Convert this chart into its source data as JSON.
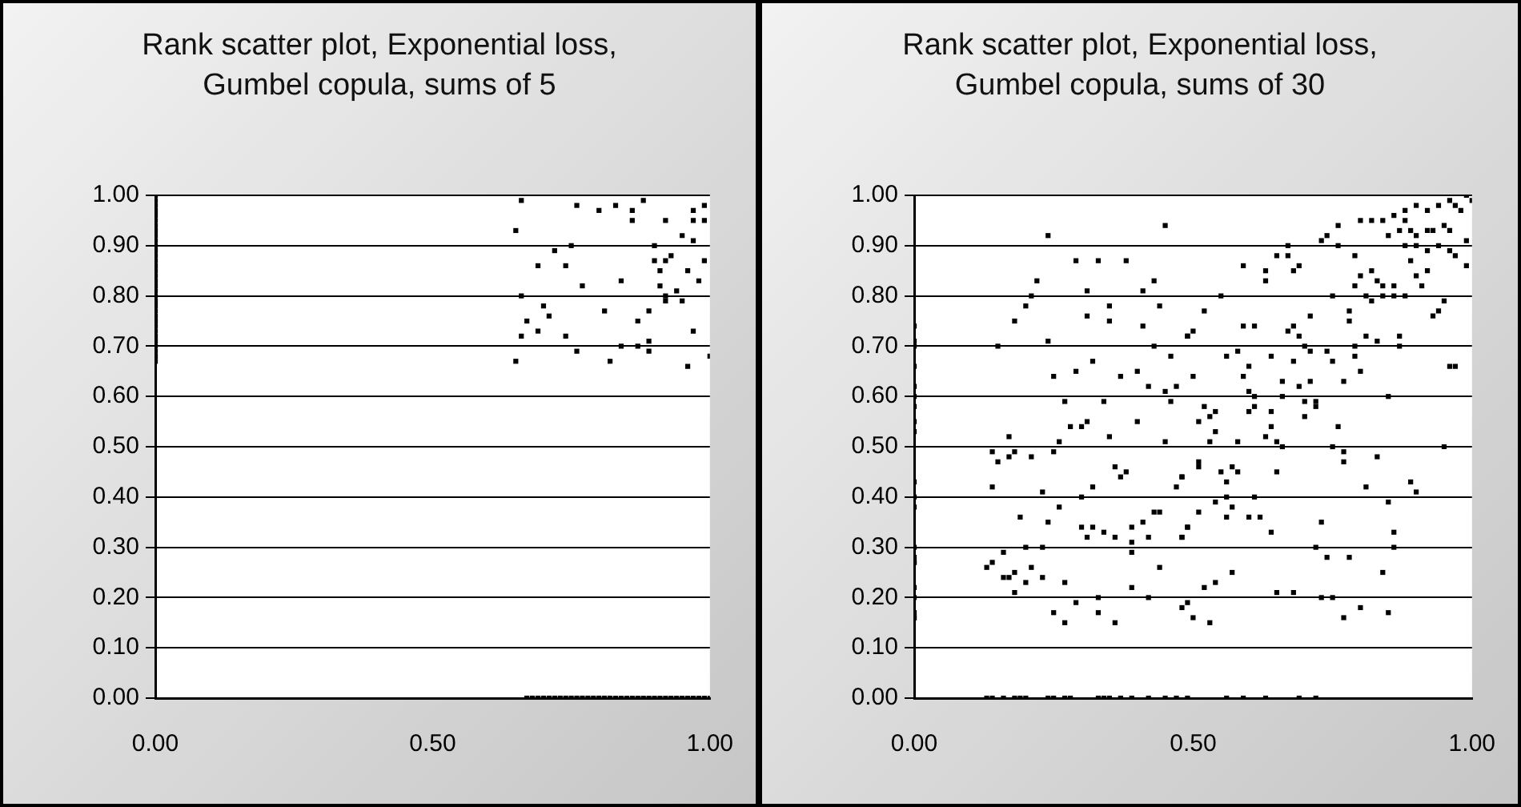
{
  "chart_data": [
    {
      "type": "scatter",
      "title": "Rank scatter plot, Exponential loss, Gumbel copula, sums of 5",
      "color": "#000000",
      "marker": "square",
      "grid": "y",
      "xlim": [
        0,
        1
      ],
      "ylim": [
        0,
        1
      ],
      "xticks": [
        {
          "value": 0,
          "label": "0.00"
        },
        {
          "value": 0.5,
          "label": "0.50"
        },
        {
          "value": 1,
          "label": "1.00"
        }
      ],
      "yticks": [
        {
          "value": 0,
          "label": "0.00"
        },
        {
          "value": 0.1,
          "label": "0.10"
        },
        {
          "value": 0.2,
          "label": "0.20"
        },
        {
          "value": 0.3,
          "label": "0.30"
        },
        {
          "value": 0.4,
          "label": "0.40"
        },
        {
          "value": 0.5,
          "label": "0.50"
        },
        {
          "value": 0.6,
          "label": "0.60"
        },
        {
          "value": 0.7,
          "label": "0.70"
        },
        {
          "value": 0.8,
          "label": "0.80"
        },
        {
          "value": 0.9,
          "label": "0.90"
        },
        {
          "value": 1,
          "label": "1.00"
        }
      ],
      "x": [
        0,
        0,
        0,
        0,
        0,
        0,
        0,
        0,
        0,
        0,
        0,
        0,
        0,
        0,
        0,
        0,
        0,
        0,
        0,
        0,
        0,
        0,
        0,
        0,
        0,
        0,
        0,
        0,
        0,
        0,
        0,
        0,
        0,
        0,
        0.67,
        0.68,
        0.69,
        0.7,
        0.71,
        0.72,
        0.73,
        0.74,
        0.75,
        0.76,
        0.77,
        0.78,
        0.79,
        0.8,
        0.81,
        0.82,
        0.83,
        0.84,
        0.85,
        0.86,
        0.87,
        0.88,
        0.89,
        0.9,
        0.91,
        0.92,
        0.93,
        0.94,
        0.95,
        0.96,
        0.97,
        0.98,
        0.99,
        1.0,
        0.65,
        0.86,
        0.92,
        0.97,
        0.99,
        0.75,
        0.72,
        0.9,
        0.95,
        0.97,
        0.69,
        0.74,
        0.9,
        0.92,
        0.93,
        0.91,
        0.96,
        0.99,
        0.98,
        0.77,
        0.84,
        0.91,
        0.66,
        0.94,
        0.92,
        0.92,
        0.95,
        0.7,
        0.71,
        0.81,
        0.89,
        0.87,
        0.67,
        0.69,
        0.66,
        0.74,
        0.97,
        0.76,
        0.84,
        0.87,
        0.89,
        0.89,
        0.65,
        0.82,
        0.96,
        1.0,
        0.66,
        0.76,
        0.8,
        0.83,
        0.86,
        0.88,
        0.97,
        0.99
      ],
      "values": [
        0.67,
        0.68,
        0.69,
        0.7,
        0.71,
        0.72,
        0.73,
        0.74,
        0.75,
        0.76,
        0.77,
        0.78,
        0.79,
        0.8,
        0.81,
        0.82,
        0.83,
        0.84,
        0.85,
        0.86,
        0.87,
        0.88,
        0.89,
        0.9,
        0.91,
        0.92,
        0.93,
        0.94,
        0.95,
        0.96,
        0.97,
        0.98,
        0.99,
        1.0,
        0,
        0,
        0,
        0,
        0,
        0,
        0,
        0,
        0,
        0,
        0,
        0,
        0,
        0,
        0,
        0,
        0,
        0,
        0,
        0,
        0,
        0,
        0,
        0,
        0,
        0,
        0,
        0,
        0,
        0,
        0,
        0,
        0,
        0,
        0.93,
        0.95,
        0.95,
        0.95,
        0.95,
        0.9,
        0.89,
        0.9,
        0.92,
        0.91,
        0.86,
        0.86,
        0.87,
        0.87,
        0.88,
        0.85,
        0.85,
        0.87,
        0.83,
        0.82,
        0.83,
        0.82,
        0.8,
        0.81,
        0.8,
        0.79,
        0.79,
        0.78,
        0.76,
        0.77,
        0.77,
        0.75,
        0.75,
        0.73,
        0.72,
        0.72,
        0.73,
        0.69,
        0.7,
        0.7,
        0.71,
        0.69,
        0.67,
        0.67,
        0.66,
        0.68,
        0.99,
        0.98,
        0.97,
        0.98,
        0.97,
        0.99,
        0.97,
        0.98
      ]
    },
    {
      "type": "scatter",
      "title": "Rank scatter plot, Exponential loss, Gumbel copula, sums of 30",
      "color": "#000000",
      "marker": "square",
      "grid": "y",
      "xlim": [
        0,
        1
      ],
      "ylim": [
        0,
        1
      ],
      "xticks": [
        {
          "value": 0,
          "label": "0.00"
        },
        {
          "value": 0.5,
          "label": "0.50"
        },
        {
          "value": 1,
          "label": "1.00"
        }
      ],
      "yticks": [
        {
          "value": 0,
          "label": "0.00"
        },
        {
          "value": 0.1,
          "label": "0.10"
        },
        {
          "value": 0.2,
          "label": "0.20"
        },
        {
          "value": 0.3,
          "label": "0.30"
        },
        {
          "value": 0.4,
          "label": "0.40"
        },
        {
          "value": 0.5,
          "label": "0.50"
        },
        {
          "value": 0.6,
          "label": "0.60"
        },
        {
          "value": 0.7,
          "label": "0.70"
        },
        {
          "value": 0.8,
          "label": "0.80"
        },
        {
          "value": 0.9,
          "label": "0.90"
        },
        {
          "value": 1,
          "label": "1.00"
        }
      ],
      "x": [
        0,
        0,
        0,
        0,
        0,
        0,
        0,
        0,
        0,
        0,
        0,
        0,
        0,
        0,
        0,
        0,
        0,
        0,
        0,
        0,
        0,
        0.24,
        0.45,
        0.29,
        0.33,
        0.38,
        0.22,
        0.43,
        0.31,
        0.41,
        0.21,
        0.2,
        0.35,
        0.44,
        0.31,
        0.35,
        0.41,
        0.18,
        0.49,
        0.24,
        0.15,
        0.43,
        0.46,
        0.32,
        0.29,
        0.25,
        0.37,
        0.4,
        0.42,
        0.47,
        0.45,
        0.27,
        0.34,
        0.46,
        0.31,
        0.28,
        0.3,
        0.4,
        0.17,
        0.35,
        0.45,
        0.14,
        0.18,
        0.17,
        0.21,
        0.25,
        0.26,
        0.15,
        0.36,
        0.38,
        0.37,
        0.48,
        0.76,
        0.8,
        0.82,
        0.88,
        0.87,
        0.89,
        0.9,
        0.92,
        0.93,
        0.95,
        0.96,
        0.67,
        0.73,
        0.74,
        0.76,
        0.85,
        0.88,
        0.9,
        0.92,
        0.94,
        0.96,
        0.99,
        0.97,
        0.65,
        0.67,
        0.69,
        0.68,
        0.79,
        0.89,
        0.59,
        0.63,
        0.63,
        0.8,
        0.82,
        0.83,
        0.79,
        0.84,
        0.86,
        0.9,
        0.92,
        0.91,
        0.99,
        0.84,
        0.86,
        0.75,
        0.55,
        0.81,
        0.82,
        0.88,
        0.95,
        0.94,
        0.93,
        0.52,
        0.78,
        0.78,
        0.71,
        0.59,
        0.61,
        0.49,
        0.5,
        0.67,
        0.68,
        0.69,
        0.81,
        0.83,
        0.87,
        0.87,
        0.7,
        0.79,
        0.58,
        0.56,
        0.6,
        0.64,
        0.68,
        0.71,
        0.74,
        0.75,
        0.79,
        0.8,
        0.96,
        0.97,
        0.5,
        0.59,
        0.66,
        0.71,
        0.77,
        0.6,
        0.61,
        0.66,
        0.69,
        0.7,
        0.72,
        0.85,
        0.52,
        0.61,
        0.64,
        0.72,
        0.6,
        0.7,
        0.54,
        0.53,
        0.51,
        0.64,
        0.76,
        0.54,
        0.63,
        0.65,
        0.53,
        0.58,
        0.66,
        0.75,
        0.95,
        0.77,
        0.51,
        0.51,
        0.83,
        0.77,
        0.57,
        0.55,
        0.58,
        0.65,
        0.48,
        0.14,
        0.23,
        0.32,
        0.47,
        0.3,
        0.26,
        0.19,
        0.24,
        0.3,
        0.32,
        0.31,
        0.34,
        0.36,
        0.39,
        0.39,
        0.41,
        0.43,
        0.44,
        0.42,
        0.48,
        0.49,
        0.16,
        0.2,
        0.23,
        0.13,
        0.14,
        0.16,
        0.17,
        0.18,
        0.2,
        0.18,
        0.21,
        0.23,
        0.27,
        0.39,
        0.44,
        0.39,
        0.29,
        0.33,
        0.33,
        0.25,
        0.27,
        0.36,
        0.42,
        0.48,
        0.49,
        0.13,
        0.14,
        0.16,
        0.18,
        0.19,
        0.2,
        0.24,
        0.25,
        0.27,
        0.28,
        0.33,
        0.34,
        0.35,
        0.37,
        0.39,
        0.42,
        0.45,
        0.47,
        0.49,
        0.56,
        0.59,
        0.63,
        0.69,
        0.72,
        0.56,
        0.61,
        0.54,
        0.56,
        0.57,
        0.51,
        0.56,
        0.6,
        0.62,
        0.81,
        0.85,
        0.89,
        0.9,
        0.49,
        0.48,
        0.64,
        0.73,
        0.72,
        0.74,
        0.78,
        0.86,
        0.86,
        0.57,
        0.52,
        0.54,
        0.65,
        0.68,
        0.73,
        0.75,
        0.84,
        0.5,
        0.53,
        0.8,
        0.85,
        0.77,
        0.88,
        0.9,
        0.92,
        0.94,
        0.96,
        0.97,
        0.98,
        0.99,
        1.0,
        0.86,
        0.84
      ],
      "values": [
        0.74,
        0.71,
        0.7,
        0.66,
        0.62,
        0.6,
        0.58,
        0.55,
        0.53,
        0.43,
        0.4,
        0.38,
        0.3,
        0.28,
        0.27,
        0.27,
        0.22,
        0.2,
        0.17,
        0.16,
        0.16,
        0.92,
        0.94,
        0.87,
        0.87,
        0.87,
        0.83,
        0.83,
        0.81,
        0.81,
        0.8,
        0.78,
        0.78,
        0.78,
        0.76,
        0.75,
        0.74,
        0.75,
        0.72,
        0.71,
        0.7,
        0.7,
        0.68,
        0.67,
        0.65,
        0.64,
        0.64,
        0.65,
        0.62,
        0.62,
        0.61,
        0.59,
        0.59,
        0.59,
        0.55,
        0.54,
        0.54,
        0.55,
        0.52,
        0.52,
        0.51,
        0.49,
        0.49,
        0.48,
        0.48,
        0.49,
        0.51,
        0.47,
        0.46,
        0.45,
        0.44,
        0.44,
        0.94,
        0.95,
        0.95,
        0.95,
        0.93,
        0.93,
        0.92,
        0.93,
        0.93,
        0.94,
        0.93,
        0.9,
        0.91,
        0.92,
        0.9,
        0.92,
        0.9,
        0.9,
        0.89,
        0.9,
        0.89,
        0.91,
        0.88,
        0.88,
        0.88,
        0.86,
        0.85,
        0.88,
        0.87,
        0.86,
        0.85,
        0.83,
        0.84,
        0.85,
        0.83,
        0.82,
        0.82,
        0.82,
        0.84,
        0.85,
        0.82,
        0.86,
        0.8,
        0.8,
        0.8,
        0.8,
        0.8,
        0.79,
        0.8,
        0.79,
        0.77,
        0.76,
        0.77,
        0.77,
        0.75,
        0.76,
        0.74,
        0.74,
        0.72,
        0.73,
        0.73,
        0.74,
        0.72,
        0.72,
        0.71,
        0.72,
        0.7,
        0.7,
        0.7,
        0.69,
        0.68,
        0.66,
        0.68,
        0.67,
        0.69,
        0.69,
        0.67,
        0.68,
        0.65,
        0.66,
        0.66,
        0.64,
        0.64,
        0.63,
        0.63,
        0.63,
        0.61,
        0.6,
        0.6,
        0.62,
        0.59,
        0.59,
        0.6,
        0.58,
        0.58,
        0.57,
        0.58,
        0.57,
        0.56,
        0.57,
        0.56,
        0.55,
        0.54,
        0.54,
        0.53,
        0.52,
        0.51,
        0.51,
        0.51,
        0.5,
        0.5,
        0.5,
        0.49,
        0.47,
        0.46,
        0.48,
        0.47,
        0.46,
        0.45,
        0.45,
        0.45,
        0.44,
        0.42,
        0.41,
        0.42,
        0.42,
        0.4,
        0.38,
        0.36,
        0.35,
        0.34,
        0.34,
        0.32,
        0.33,
        0.32,
        0.34,
        0.31,
        0.35,
        0.37,
        0.37,
        0.32,
        0.32,
        0.34,
        0.29,
        0.3,
        0.3,
        0.26,
        0.27,
        0.24,
        0.24,
        0.25,
        0.23,
        0.21,
        0.26,
        0.24,
        0.23,
        0.29,
        0.26,
        0.22,
        0.19,
        0.2,
        0.17,
        0.17,
        0.15,
        0.15,
        0.2,
        0.18,
        0.19,
        0,
        0,
        0,
        0,
        0,
        0,
        0,
        0,
        0,
        0,
        0,
        0,
        0,
        0,
        0,
        0,
        0,
        0,
        0,
        0,
        0,
        0,
        0,
        0,
        0.43,
        0.4,
        0.39,
        0.4,
        0.38,
        0.37,
        0.36,
        0.36,
        0.36,
        0.42,
        0.39,
        0.43,
        0.41,
        0.34,
        0.32,
        0.33,
        0.35,
        0.3,
        0.28,
        0.28,
        0.33,
        0.3,
        0.25,
        0.22,
        0.23,
        0.21,
        0.21,
        0.2,
        0.2,
        0.25,
        0.16,
        0.15,
        0.18,
        0.17,
        0.16,
        0.97,
        0.98,
        0.97,
        0.98,
        0.99,
        0.98,
        0.97,
        1.0,
        0.99,
        0.96,
        0.95
      ]
    }
  ]
}
